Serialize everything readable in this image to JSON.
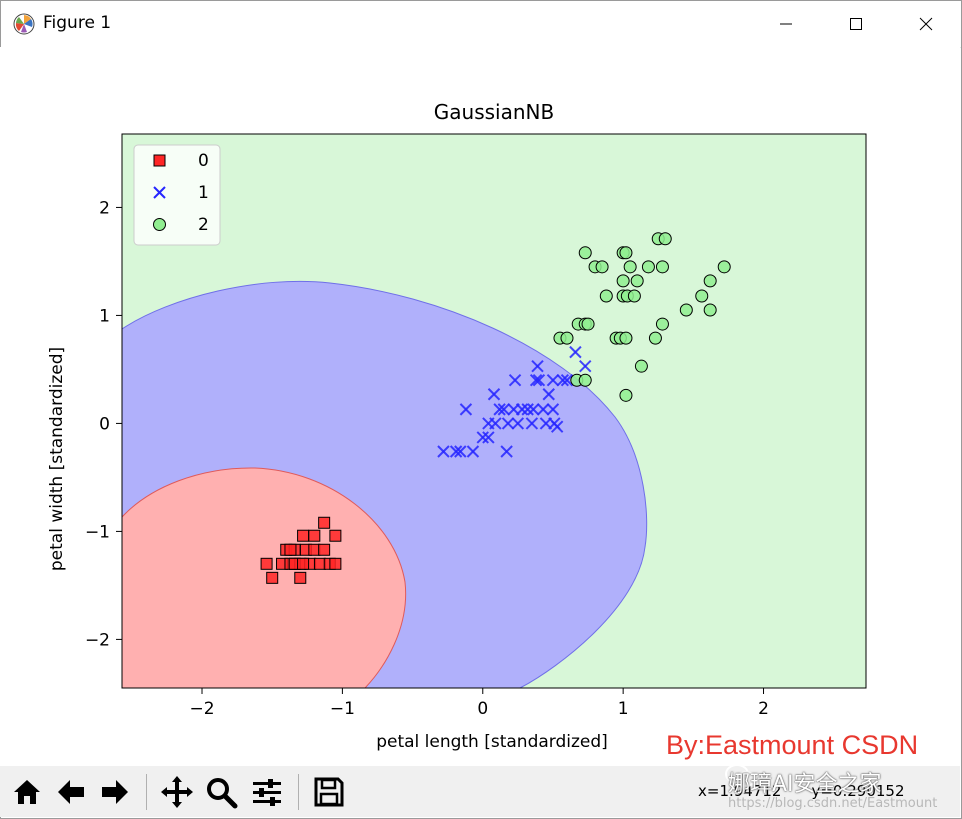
{
  "window": {
    "title": "Figure 1"
  },
  "toolbar": {
    "buttons": [
      {
        "name": "home-icon"
      },
      {
        "name": "back-arrow-icon"
      },
      {
        "name": "forward-arrow-icon"
      },
      {
        "name": "pan-icon"
      },
      {
        "name": "zoom-icon"
      },
      {
        "name": "configure-subplots-icon"
      },
      {
        "name": "save-icon"
      }
    ],
    "coord_x": "x=1.94712",
    "coord_y": "y=0.290152"
  },
  "watermark": {
    "text": "By:Eastmount CSDN",
    "overlay": "娜璋AI安全之家",
    "url": "https://blog.csdn.net/Eastmount"
  },
  "chart_data": {
    "type": "scatter",
    "title": "GaussianNB",
    "xlabel": "petal length [standardized]",
    "ylabel": "petal width [standardized]",
    "xlim": [
      -2.57,
      2.73
    ],
    "ylim": [
      -2.45,
      2.68
    ],
    "xticks": [
      -2,
      -1,
      0,
      1,
      2
    ],
    "yticks": [
      -2,
      -1,
      0,
      1,
      2
    ],
    "xtick_labels": [
      "−2",
      "−1",
      "0",
      "1",
      "2"
    ],
    "ytick_labels": [
      "−2",
      "−1",
      "0",
      "1",
      "2"
    ],
    "legend_position": "upper-left",
    "colors": {
      "background_region": "#d8f7d8",
      "class1_region": "#b0b0fb",
      "class0_region": "#ffb0b0",
      "class0_marker": "#ff2626",
      "class1_marker": "#2626ff",
      "class2_marker": "#90ee90"
    },
    "series": [
      {
        "name": "0",
        "marker": "square",
        "points": [
          [
            -1.54,
            -1.3
          ],
          [
            -1.5,
            -1.43
          ],
          [
            -1.43,
            -1.3
          ],
          [
            -1.4,
            -1.17
          ],
          [
            -1.37,
            -1.3
          ],
          [
            -1.34,
            -1.3
          ],
          [
            -1.34,
            -1.17
          ],
          [
            -1.3,
            -1.3
          ],
          [
            -1.3,
            -1.43
          ],
          [
            -1.28,
            -1.04
          ],
          [
            -1.26,
            -1.17
          ],
          [
            -1.23,
            -1.3
          ],
          [
            -1.2,
            -1.04
          ],
          [
            -1.2,
            -1.17
          ],
          [
            -1.16,
            -1.3
          ],
          [
            -1.13,
            -0.92
          ],
          [
            -1.13,
            -1.17
          ],
          [
            -1.09,
            -1.3
          ],
          [
            -1.05,
            -1.04
          ],
          [
            -1.05,
            -1.3
          ],
          [
            -1.34,
            -1.3
          ],
          [
            -1.28,
            -1.3
          ],
          [
            -1.37,
            -1.17
          ]
        ]
      },
      {
        "name": "1",
        "marker": "x",
        "points": [
          [
            -0.28,
            -0.26
          ],
          [
            -0.19,
            -0.26
          ],
          [
            -0.16,
            -0.26
          ],
          [
            -0.12,
            0.13
          ],
          [
            -0.07,
            -0.26
          ],
          [
            0.0,
            -0.13
          ],
          [
            0.04,
            -0.13
          ],
          [
            0.04,
            0.0
          ],
          [
            0.08,
            0.27
          ],
          [
            0.09,
            0.0
          ],
          [
            0.12,
            0.13
          ],
          [
            0.15,
            0.13
          ],
          [
            0.17,
            -0.26
          ],
          [
            0.18,
            0.0
          ],
          [
            0.22,
            0.13
          ],
          [
            0.23,
            0.4
          ],
          [
            0.25,
            0.0
          ],
          [
            0.28,
            0.13
          ],
          [
            0.32,
            0.13
          ],
          [
            0.35,
            0.0
          ],
          [
            0.36,
            0.13
          ],
          [
            0.38,
            0.4
          ],
          [
            0.39,
            0.53
          ],
          [
            0.4,
            0.4
          ],
          [
            0.43,
            0.13
          ],
          [
            0.45,
            0.0
          ],
          [
            0.47,
            0.27
          ],
          [
            0.5,
            0.13
          ],
          [
            0.5,
            0.4
          ],
          [
            0.51,
            0.0
          ],
          [
            0.53,
            -0.03
          ],
          [
            0.57,
            0.4
          ],
          [
            0.6,
            0.4
          ],
          [
            0.66,
            0.66
          ],
          [
            0.73,
            0.53
          ]
        ]
      },
      {
        "name": "2",
        "marker": "circle",
        "points": [
          [
            0.55,
            0.79
          ],
          [
            0.6,
            0.79
          ],
          [
            0.67,
            0.4
          ],
          [
            0.68,
            0.92
          ],
          [
            0.73,
            0.4
          ],
          [
            0.73,
            0.92
          ],
          [
            0.75,
            0.92
          ],
          [
            0.73,
            1.58
          ],
          [
            0.8,
            1.45
          ],
          [
            0.85,
            1.45
          ],
          [
            0.88,
            1.18
          ],
          [
            0.95,
            0.79
          ],
          [
            0.98,
            0.79
          ],
          [
            1.0,
            1.18
          ],
          [
            1.0,
            1.32
          ],
          [
            1.02,
            0.79
          ],
          [
            1.03,
            1.18
          ],
          [
            1.0,
            1.58
          ],
          [
            1.02,
            1.58
          ],
          [
            1.02,
            0.26
          ],
          [
            1.05,
            1.45
          ],
          [
            1.08,
            1.18
          ],
          [
            1.1,
            1.32
          ],
          [
            1.13,
            0.53
          ],
          [
            1.18,
            1.45
          ],
          [
            1.23,
            0.79
          ],
          [
            1.25,
            1.71
          ],
          [
            1.28,
            1.45
          ],
          [
            1.3,
            1.71
          ],
          [
            1.28,
            0.92
          ],
          [
            1.45,
            1.05
          ],
          [
            1.56,
            1.18
          ],
          [
            1.62,
            1.05
          ],
          [
            1.62,
            1.32
          ],
          [
            1.72,
            1.45
          ]
        ]
      }
    ]
  }
}
